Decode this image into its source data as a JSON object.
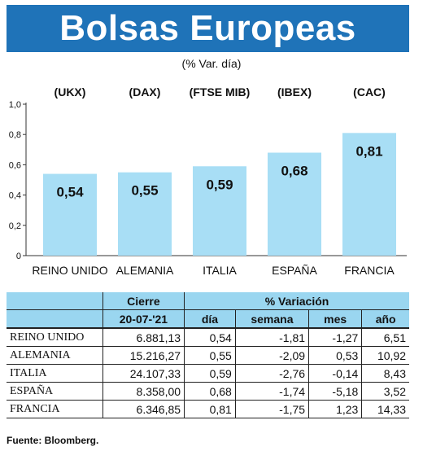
{
  "title": "Bolsas Europeas",
  "subtitle": "(% Var. día)",
  "chart_data": {
    "type": "bar",
    "categories": [
      "REINO UNIDO",
      "ALEMANIA",
      "ITALIA",
      "ESPAÑA",
      "FRANCIA"
    ],
    "top_labels": [
      "(UKX)",
      "(DAX)",
      "(FTSE MIB)",
      "(IBEX)",
      "(CAC)"
    ],
    "values": [
      0.54,
      0.55,
      0.59,
      0.68,
      0.81
    ],
    "value_labels": [
      "0,54",
      "0,55",
      "0,59",
      "0,68",
      "0,81"
    ],
    "yticks": [
      "0",
      "0,2",
      "0,4",
      "0,6",
      "0,8",
      "1,0"
    ],
    "ylim": [
      0,
      1.0
    ],
    "bar_color": "#a8def5"
  },
  "table": {
    "header1": [
      "Cierre",
      "% Variación"
    ],
    "header2": [
      "20-07-'21",
      "día",
      "semana",
      "mes",
      "año"
    ],
    "rows": [
      [
        "REINO UNIDO",
        "6.881,13",
        "0,54",
        "-1,81",
        "-1,27",
        "6,51"
      ],
      [
        "ALEMANIA",
        "15.216,27",
        "0,55",
        "-2,09",
        "0,53",
        "10,92"
      ],
      [
        "ITALIA",
        "24.107,33",
        "0,59",
        "-2,76",
        "-0,14",
        "8,43"
      ],
      [
        "ESPAÑA",
        "8.358,00",
        "0,68",
        "-1,74",
        "-5,18",
        "3,52"
      ],
      [
        "FRANCIA",
        "6.346,85",
        "0,81",
        "-1,75",
        "1,23",
        "14,33"
      ]
    ]
  },
  "source": "Fuente: Bloomberg."
}
